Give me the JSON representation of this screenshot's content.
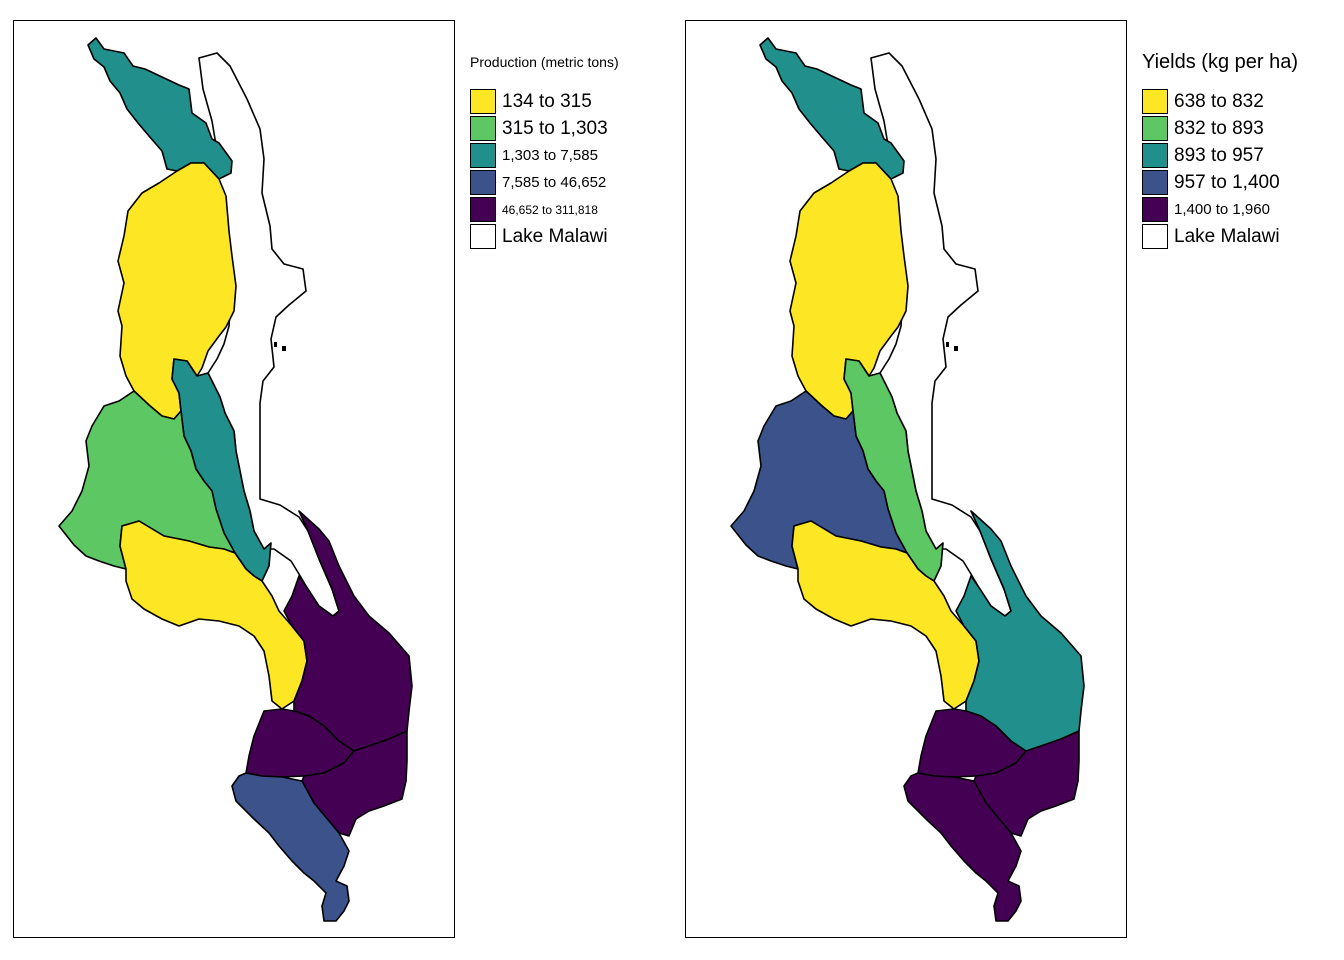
{
  "maps": [
    {
      "id": "production",
      "legend_title": "Production (metric tons)",
      "classes": [
        {
          "label": "134 to 315",
          "color": "#FDE725"
        },
        {
          "label": "315 to 1,303",
          "color": "#5DC863"
        },
        {
          "label": "1,303 to 7,585",
          "color": "#21908C"
        },
        {
          "label": "7,585 to 46,652",
          "color": "#3B528B"
        },
        {
          "label": "46,652 to 311,818",
          "color": "#440154"
        },
        {
          "label": "Lake Malawi",
          "color": "#FFFFFF"
        }
      ],
      "region_classes": {
        "north_tip": 2,
        "north": 0,
        "central_east_strip": 2,
        "central_west": 1,
        "central_south": 0,
        "southeast_lake": 4,
        "south_central": 4,
        "south_east": 4,
        "south_west": 3,
        "lake": 5
      }
    },
    {
      "id": "yields",
      "legend_title": "Yields (kg per ha)",
      "classes": [
        {
          "label": "638 to 832",
          "color": "#FDE725"
        },
        {
          "label": "832 to 893",
          "color": "#5DC863"
        },
        {
          "label": "893 to 957",
          "color": "#21908C"
        },
        {
          "label": "957 to 1,400",
          "color": "#3B528B"
        },
        {
          "label": "1,400 to 1,960",
          "color": "#440154"
        },
        {
          "label": "Lake Malawi",
          "color": "#FFFFFF"
        }
      ],
      "region_classes": {
        "north_tip": 2,
        "north": 0,
        "central_east_strip": 1,
        "central_west": 3,
        "central_south": 0,
        "southeast_lake": 2,
        "south_central": 4,
        "south_east": 4,
        "south_west": 4,
        "lake": 5
      }
    }
  ]
}
